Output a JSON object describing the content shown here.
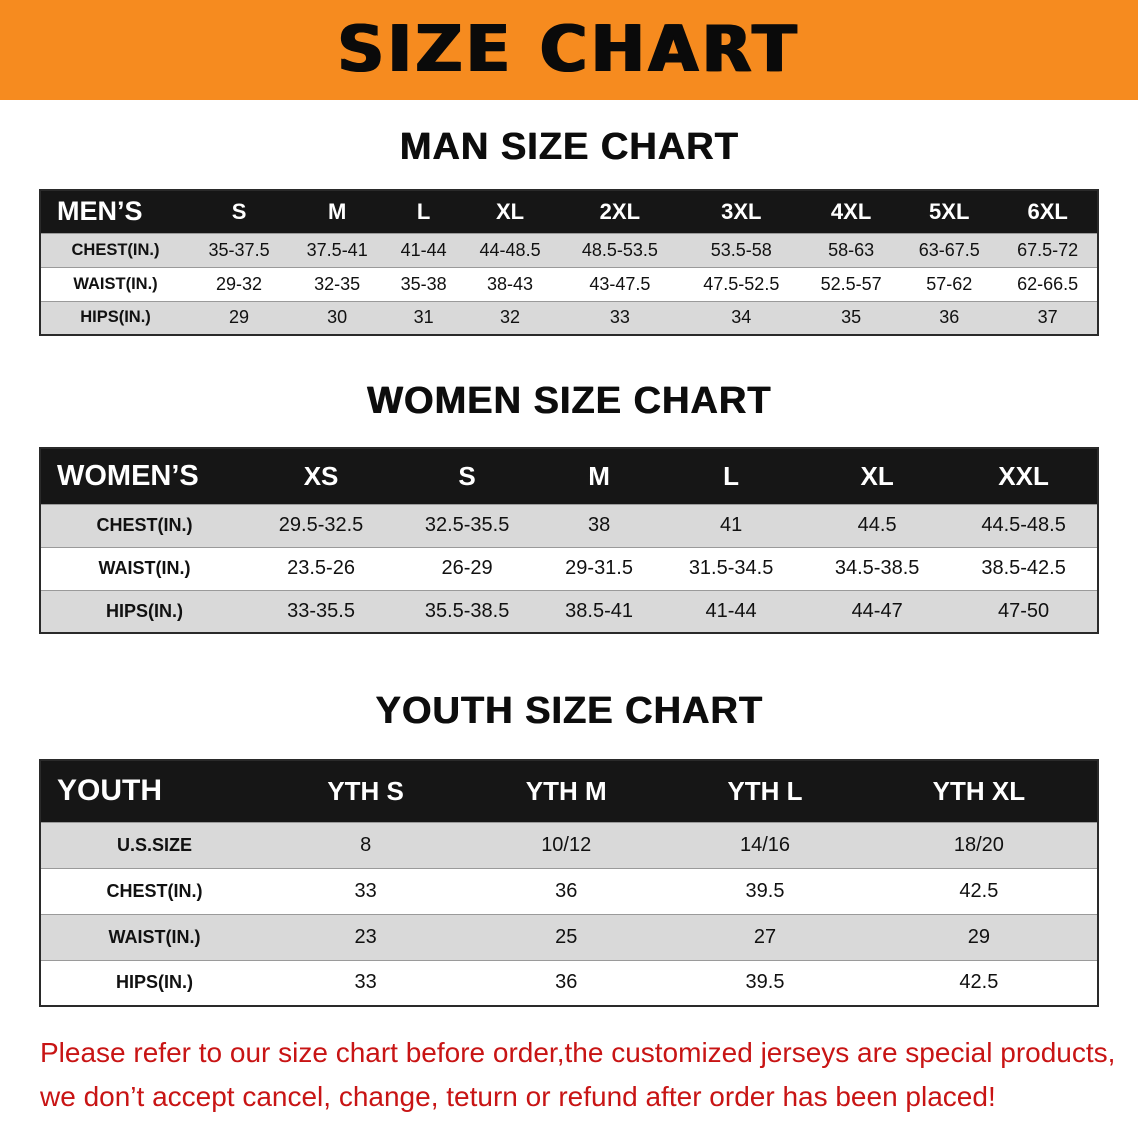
{
  "banner": {
    "title": "SIZE CHART"
  },
  "sections": [
    {
      "heading": "MAN SIZE CHART",
      "table": {
        "header": [
          "MEN’S",
          "S",
          "M",
          "L",
          "XL",
          "2XL",
          "3XL",
          "4XL",
          "5XL",
          "6XL"
        ],
        "rows": [
          [
            "CHEST(IN.)",
            "35-37.5",
            "37.5-41",
            "41-44",
            "44-48.5",
            "48.5-53.5",
            "53.5-58",
            "58-63",
            "63-67.5",
            "67.5-72"
          ],
          [
            "WAIST(IN.)",
            "29-32",
            "32-35",
            "35-38",
            "38-43",
            "43-47.5",
            "47.5-52.5",
            "52.5-57",
            "57-62",
            "62-66.5"
          ],
          [
            "HIPS(IN.)",
            "29",
            "30",
            "31",
            "32",
            "33",
            "34",
            "35",
            "36",
            "37"
          ]
        ]
      }
    },
    {
      "heading": "WOMEN SIZE CHART",
      "table": {
        "header": [
          "WOMEN’S",
          "XS",
          "S",
          "M",
          "L",
          "XL",
          "XXL"
        ],
        "rows": [
          [
            "CHEST(IN.)",
            "29.5-32.5",
            "32.5-35.5",
            "38",
            "41",
            "44.5",
            "44.5-48.5"
          ],
          [
            "WAIST(IN.)",
            "23.5-26",
            "26-29",
            "29-31.5",
            "31.5-34.5",
            "34.5-38.5",
            "38.5-42.5"
          ],
          [
            "HIPS(IN.)",
            "33-35.5",
            "35.5-38.5",
            "38.5-41",
            "41-44",
            "44-47",
            "47-50"
          ]
        ]
      }
    },
    {
      "heading": "YOUTH SIZE CHART",
      "table": {
        "header": [
          "YOUTH",
          "YTH S",
          "YTH M",
          "YTH L",
          "YTH XL"
        ],
        "rows": [
          [
            "U.S.SIZE",
            "8",
            "10/12",
            "14/16",
            "18/20"
          ],
          [
            "CHEST(IN.)",
            "33",
            "36",
            "39.5",
            "42.5"
          ],
          [
            "WAIST(IN.)",
            "23",
            "25",
            "27",
            "29"
          ],
          [
            "HIPS(IN.)",
            "33",
            "36",
            "39.5",
            "42.5"
          ]
        ]
      }
    }
  ],
  "disclaimer": {
    "line1": "Please refer to our size chart before order,the customized jerseys are special products,",
    "line2": "we don’t accept cancel, change, teturn or refund after order has been placed!"
  },
  "colors": {
    "banner_bg": "#f68b1f",
    "table_header_bg": "#161616",
    "row_stripe": "#d9d9d9",
    "disclaimer_red": "#c81414",
    "heading_black": "#0d0d0d"
  }
}
